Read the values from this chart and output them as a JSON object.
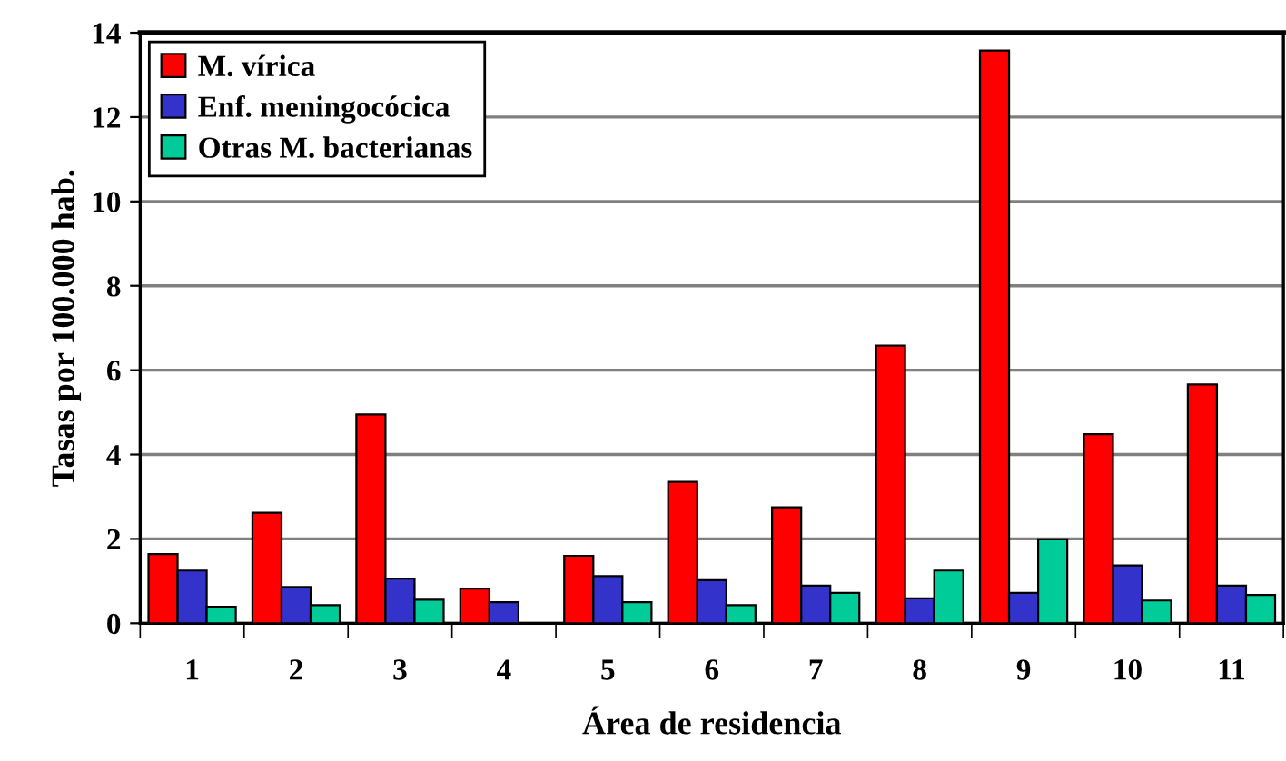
{
  "chart_data": {
    "type": "bar",
    "xlabel": "Área de residencia",
    "ylabel": "Tasas por 100.000 hab.",
    "categories": [
      "1",
      "2",
      "3",
      "4",
      "5",
      "6",
      "7",
      "8",
      "9",
      "10",
      "11"
    ],
    "series": [
      {
        "name": "M. vírica",
        "color": "#ff0000",
        "values": [
          1.64,
          2.62,
          4.95,
          0.82,
          1.6,
          3.35,
          2.75,
          6.58,
          13.58,
          4.48,
          5.66
        ]
      },
      {
        "name": "Enf. meningocócica",
        "color": "#3333cc",
        "values": [
          1.25,
          0.86,
          1.06,
          0.5,
          1.12,
          1.02,
          0.89,
          0.59,
          0.72,
          1.37,
          0.89
        ]
      },
      {
        "name": "Otras M. bacterianas",
        "color": "#00cc99",
        "values": [
          0.39,
          0.43,
          0.56,
          null,
          0.5,
          0.43,
          0.72,
          1.25,
          1.99,
          0.54,
          0.67
        ]
      }
    ],
    "ylim": [
      0,
      14
    ],
    "yticks": [
      0,
      2,
      4,
      6,
      8,
      10,
      12,
      14
    ],
    "grid": "y",
    "legend": "top left"
  }
}
